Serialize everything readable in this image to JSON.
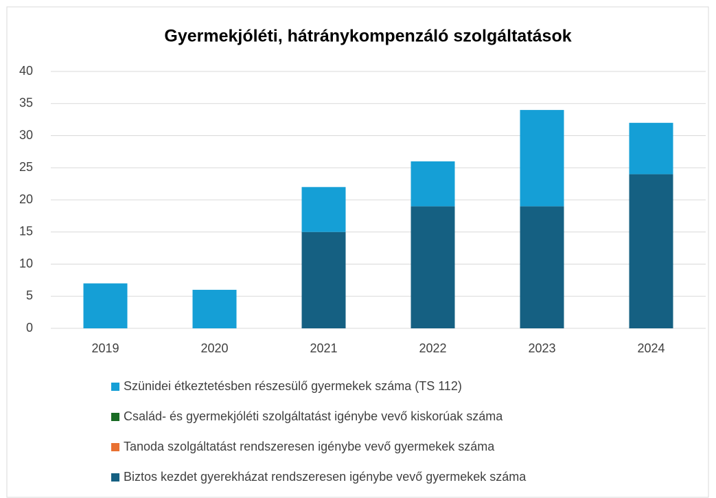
{
  "chart_data": {
    "type": "stacked_bar",
    "title": "Gyermekjóléti, hátránykompenzáló szolgáltatások",
    "categories": [
      "2019",
      "2020",
      "2021",
      "2022",
      "2023",
      "2024"
    ],
    "series": [
      {
        "name": "Szünidei étkeztetésben részesülő gyermekek száma (TS 112)",
        "color": "#159fd6",
        "values": [
          7,
          6,
          7,
          7,
          15,
          8
        ]
      },
      {
        "name": "Család- és gyermekjóléti szolgáltatást igénybe vevő kiskorúak száma",
        "color": "#196b24",
        "values": [
          0,
          0,
          0,
          0,
          0,
          0
        ]
      },
      {
        "name": "Tanoda szolgáltatást rendszeresen igénybe vevő gyermekek száma",
        "color": "#e97132",
        "values": [
          0,
          0,
          0,
          0,
          0,
          0
        ]
      },
      {
        "name": "Biztos kezdet gyerekházat rendszeresen igénybe vevő gyermekek száma",
        "color": "#156082",
        "values": [
          0,
          0,
          15,
          19,
          19,
          24
        ]
      }
    ],
    "ylim": [
      0,
      40
    ],
    "yticks": [
      0,
      5,
      10,
      15,
      20,
      25,
      30,
      35,
      40
    ],
    "grid": true
  }
}
